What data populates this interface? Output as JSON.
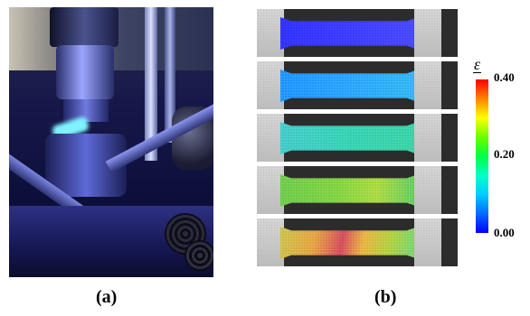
{
  "panels": {
    "a": {
      "label": "(a)"
    },
    "b": {
      "label": "(b)"
    }
  },
  "colorbar": {
    "title": "ε",
    "ticks": [
      "0.40",
      "0.20",
      "0.00"
    ],
    "colors": [
      "#0000ff",
      "#00ccff",
      "#00ff44",
      "#ffff00",
      "#ff0000"
    ]
  },
  "frames": [
    {
      "strain_level": 0.02,
      "color": "#3a3aff"
    },
    {
      "strain_level": 0.1,
      "color": "#2aa0ff"
    },
    {
      "strain_level": 0.18,
      "color": "#35d0b0"
    },
    {
      "strain_level": 0.26,
      "color": "#7ad040"
    },
    {
      "strain_level": 0.34,
      "color": "#d2b040"
    }
  ]
}
